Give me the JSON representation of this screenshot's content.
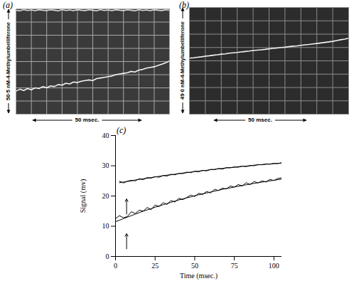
{
  "chart_data": [
    {
      "type": "line",
      "title": "(a)",
      "xlabel": "50 msec.",
      "ylabel": "50·5 nM-4-Methylumbelliferone",
      "xlim": [
        0,
        10
      ],
      "ylim": [
        0,
        8
      ],
      "xticks": [
        0,
        1,
        2,
        3,
        4,
        5,
        6,
        7,
        8,
        9,
        10
      ],
      "yticks": [
        0,
        1,
        2,
        3,
        4,
        5,
        6,
        7,
        8
      ],
      "grid": true,
      "tick_labels": false,
      "x": [
        0,
        0.25,
        0.5,
        0.75,
        1,
        1.25,
        1.5,
        1.75,
        2,
        2.25,
        2.5,
        2.75,
        3,
        3.25,
        3.5,
        3.75,
        4,
        4.25,
        4.5,
        4.75,
        5,
        5.25,
        5.5,
        5.75,
        6,
        6.25,
        6.5,
        6.75,
        7,
        7.25,
        7.5,
        7.75,
        8,
        8.25,
        8.5,
        8.75,
        9,
        9.25,
        9.5,
        9.75,
        10
      ],
      "series": [
        {
          "color": "#f2f2f2",
          "line_style": "solid",
          "values": [
            1.75,
            1.9,
            1.8,
            1.95,
            1.85,
            2.0,
            1.95,
            2.1,
            2.0,
            2.15,
            2.1,
            2.25,
            2.2,
            2.35,
            2.3,
            2.45,
            2.4,
            2.5,
            2.55,
            2.6,
            2.55,
            2.7,
            2.75,
            2.8,
            2.85,
            2.9,
            3.0,
            3.05,
            3.1,
            3.15,
            3.25,
            3.2,
            3.35,
            3.4,
            3.5,
            3.55,
            3.6,
            3.7,
            3.8,
            3.9,
            4.05
          ]
        },
        {
          "color": "#dcdcdc",
          "line_style": "solid",
          "values": [
            7.9,
            7.85,
            7.95,
            7.88,
            7.92,
            7.86,
            7.94,
            7.9,
            7.87,
            7.93,
            7.9,
            7.85,
            7.95,
            7.88,
            7.92,
            7.86,
            7.94,
            7.9,
            7.87,
            7.93,
            7.9,
            7.85,
            7.95,
            7.88,
            7.92,
            7.86,
            7.94,
            7.9,
            7.87,
            7.93,
            7.9,
            7.85,
            7.95,
            7.88,
            7.92,
            7.86,
            7.94,
            7.9,
            7.87,
            7.93,
            7.9
          ]
        }
      ]
    },
    {
      "type": "line",
      "title": "(b)",
      "xlabel": "50 msec.",
      "ylabel": "49·0 nM-4-Methylumbelliferone",
      "xlim": [
        0,
        10
      ],
      "ylim": [
        0,
        8
      ],
      "xticks": [
        0,
        1,
        2,
        3,
        4,
        5,
        6,
        7,
        8,
        9,
        10
      ],
      "yticks": [
        0,
        1,
        2,
        3,
        4,
        5,
        6,
        7,
        8
      ],
      "grid": true,
      "tick_labels": false,
      "x": [
        0,
        0.25,
        0.5,
        0.75,
        1,
        1.25,
        1.5,
        1.75,
        2,
        2.25,
        2.5,
        2.75,
        3,
        3.25,
        3.5,
        3.75,
        4,
        4.25,
        4.5,
        4.75,
        5,
        5.25,
        5.5,
        5.75,
        6,
        6.25,
        6.5,
        6.75,
        7,
        7.25,
        7.5,
        7.75,
        8,
        8.25,
        8.5,
        8.75,
        9,
        9.25,
        9.5,
        9.75,
        10
      ],
      "series": [
        {
          "color": "#f2f2f2",
          "line_style": "solid",
          "values": [
            4.2,
            4.23,
            4.27,
            4.3,
            4.35,
            4.38,
            4.42,
            4.45,
            4.5,
            4.52,
            4.57,
            4.6,
            4.63,
            4.67,
            4.7,
            4.73,
            4.77,
            4.8,
            4.83,
            4.86,
            4.9,
            4.93,
            4.96,
            5.0,
            5.02,
            5.06,
            5.1,
            5.12,
            5.16,
            5.2,
            5.23,
            5.27,
            5.3,
            5.34,
            5.38,
            5.42,
            5.46,
            5.52,
            5.58,
            5.63,
            5.7
          ]
        }
      ]
    },
    {
      "type": "line",
      "title": "(c)",
      "xlabel": "Time (msec.)",
      "ylabel": "Signal (mv)",
      "xlim": [
        0,
        105
      ],
      "ylim": [
        0,
        40
      ],
      "xticks": [
        0,
        25,
        50,
        75,
        100
      ],
      "yticks": [
        0,
        10,
        20,
        30,
        40
      ],
      "grid": false,
      "x": [
        0,
        2.5,
        5,
        7.5,
        10,
        12.5,
        15,
        17.5,
        20,
        22.5,
        25,
        27.5,
        30,
        32.5,
        35,
        37.5,
        40,
        42.5,
        45,
        47.5,
        50,
        52.5,
        55,
        57.5,
        60,
        62.5,
        65,
        67.5,
        70,
        72.5,
        75,
        77.5,
        80,
        82.5,
        85,
        87.5,
        90,
        92.5,
        95,
        97.5,
        100,
        102.5,
        105
      ],
      "series": [
        {
          "color": "#000000",
          "line_style": "solid",
          "values": [
            null,
            24.9,
            24.3,
            24.9,
            25.2,
            25.0,
            25.7,
            25.4,
            26.1,
            25.9,
            26.4,
            26.2,
            26.8,
            26.6,
            27.2,
            27.0,
            27.5,
            27.4,
            27.9,
            27.7,
            28.2,
            28.0,
            28.5,
            28.3,
            28.8,
            28.7,
            29.1,
            28.9,
            29.4,
            29.3,
            29.6,
            29.5,
            29.9,
            29.7,
            30.1,
            30.0,
            30.4,
            30.3,
            30.6,
            30.5,
            30.8,
            30.7,
            31.0
          ]
        },
        {
          "color": "#000000",
          "line_style": "solid",
          "values": [
            null,
            24.4,
            24.6,
            24.8,
            25.0,
            25.3,
            25.5,
            25.7,
            25.9,
            26.1,
            26.3,
            26.5,
            26.7,
            26.9,
            27.0,
            27.2,
            27.4,
            27.6,
            27.7,
            27.9,
            28.1,
            28.2,
            28.4,
            28.5,
            28.7,
            28.8,
            29.0,
            29.1,
            29.3,
            29.4,
            29.5,
            29.7,
            29.8,
            29.9,
            30.0,
            30.2,
            30.3,
            30.4,
            30.5,
            30.6,
            30.7,
            30.8,
            30.9
          ]
        },
        {
          "color": "#000000",
          "line_style": "solid",
          "values": [
            12.5,
            13.5,
            12.8,
            13.2,
            14.8,
            14.2,
            15.3,
            15.0,
            16.2,
            15.5,
            17.0,
            16.5,
            17.8,
            17.2,
            18.5,
            18.0,
            19.2,
            18.8,
            19.5,
            20.3,
            19.8,
            20.9,
            20.5,
            21.5,
            21.0,
            22.2,
            21.8,
            22.6,
            22.3,
            23.3,
            22.9,
            23.8,
            23.3,
            24.4,
            23.8,
            24.8,
            24.3,
            25.0,
            24.6,
            25.5,
            25.1,
            25.8,
            26.0
          ]
        },
        {
          "color": "#000000",
          "line_style": "solid",
          "values": [
            11.5,
            12.0,
            12.5,
            13.0,
            13.5,
            14.0,
            14.5,
            15.0,
            15.4,
            15.8,
            16.3,
            16.7,
            17.1,
            17.5,
            17.9,
            18.3,
            18.7,
            19.0,
            19.4,
            19.7,
            20.1,
            20.4,
            20.7,
            21.0,
            21.3,
            21.6,
            21.9,
            22.2,
            22.5,
            22.7,
            23.0,
            23.2,
            23.5,
            23.7,
            23.9,
            24.2,
            24.4,
            24.6,
            24.8,
            25.0,
            25.2,
            25.4,
            25.6
          ]
        }
      ],
      "annotations": [
        {
          "type": "arrow",
          "x": 7,
          "y_start": 14,
          "y_end": 19
        },
        {
          "type": "arrow",
          "x": 7,
          "y_start": 2.5,
          "y_end": 7.5
        }
      ]
    }
  ]
}
